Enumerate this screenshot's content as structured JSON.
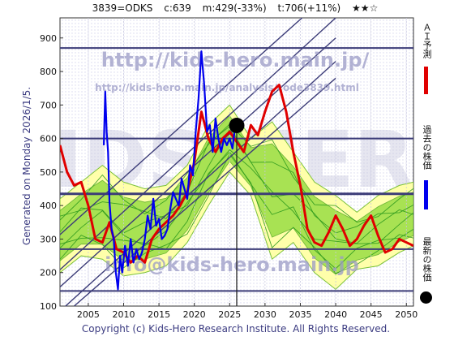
{
  "header": {
    "code_name": "3839=ODKS",
    "current": "c:639",
    "min": "m:429(-33%)",
    "target": "t:706(+11%)",
    "stars": "★★☆"
  },
  "generated": "Generated on Monday 2026/1/5.",
  "copyright": "Copyright (c) Kids-Hero Research Institute. All Rights Reserved.",
  "watermarks": {
    "url": "http://kids-hero.main.jp/",
    "url_sub": "http://kids-hero.main.jp/analysis/code3839.html",
    "email": "info@kids-hero.main.jp",
    "big": "KIDS-HERO"
  },
  "legend": {
    "ai_forecast": "ＡＩ予測",
    "past_price": "過去の株価",
    "latest_price": "最新の株価"
  },
  "colors": {
    "ai_forecast": "#e00000",
    "past_price": "#0000ee",
    "latest_price": "#000000",
    "band_green": "#99dd44",
    "band_yellow": "#ffffaa",
    "grid": "#3c3c78"
  },
  "chart_data": {
    "type": "line",
    "xlim": [
      2001,
      2051
    ],
    "ylim": [
      100,
      960
    ],
    "x_ticks": [
      2005,
      2010,
      2015,
      2020,
      2025,
      2030,
      2035,
      2040,
      2045,
      2050
    ],
    "y_ticks": [
      100,
      200,
      300,
      400,
      500,
      600,
      700,
      800,
      900
    ],
    "h_lines": [
      145,
      270,
      435,
      600,
      870
    ],
    "latest_point": {
      "x": 2026.0,
      "y": 639
    },
    "series": [
      {
        "role": "past_price",
        "x": [
          2007.2,
          2007.4,
          2007.6,
          2007.8,
          2008.0,
          2008.3,
          2008.6,
          2008.9,
          2009.2,
          2009.5,
          2009.8,
          2010.2,
          2010.6,
          2011.0,
          2011.4,
          2011.8,
          2012.2,
          2012.6,
          2013.0,
          2013.4,
          2013.8,
          2014.2,
          2014.6,
          2015.0,
          2015.4,
          2015.8,
          2016.2,
          2016.6,
          2017.0,
          2017.4,
          2017.8,
          2018.2,
          2018.6,
          2019.0,
          2019.4,
          2019.8,
          2020.2,
          2020.6,
          2021.0,
          2021.4,
          2021.8,
          2022.2,
          2022.6,
          2023.0,
          2023.4,
          2023.8,
          2024.2,
          2024.6,
          2025.0,
          2025.4,
          2025.8
        ],
        "y": [
          580,
          740,
          620,
          560,
          410,
          330,
          300,
          200,
          150,
          250,
          200,
          280,
          220,
          300,
          230,
          270,
          240,
          260,
          300,
          370,
          330,
          420,
          340,
          360,
          300,
          310,
          330,
          390,
          440,
          420,
          400,
          480,
          450,
          420,
          520,
          490,
          620,
          720,
          860,
          760,
          620,
          640,
          560,
          660,
          600,
          560,
          600,
          580,
          600,
          570,
          640
        ]
      },
      {
        "role": "ai_forecast",
        "x": [
          2001,
          2002,
          2003,
          2004,
          2005,
          2006,
          2007,
          2008,
          2009,
          2010,
          2011,
          2012,
          2013,
          2014,
          2015,
          2016,
          2017,
          2018,
          2019,
          2020,
          2021,
          2022,
          2023,
          2024,
          2025,
          2026,
          2027,
          2028,
          2029,
          2030,
          2031,
          2032,
          2033,
          2034,
          2035,
          2036,
          2037,
          2038,
          2039,
          2040,
          2041,
          2042,
          2043,
          2044,
          2045,
          2046,
          2047,
          2048,
          2049,
          2050,
          2051
        ],
        "y": [
          580,
          500,
          460,
          470,
          400,
          300,
          290,
          350,
          270,
          260,
          230,
          250,
          230,
          300,
          330,
          350,
          370,
          400,
          440,
          530,
          680,
          600,
          560,
          600,
          620,
          590,
          560,
          640,
          610,
          680,
          740,
          760,
          680,
          560,
          460,
          330,
          290,
          280,
          320,
          370,
          330,
          280,
          300,
          340,
          370,
          310,
          260,
          270,
          300,
          290,
          280
        ]
      },
      {
        "role": "band_upper",
        "x": [
          2001,
          2004,
          2007,
          2010,
          2013,
          2016,
          2019,
          2022,
          2025,
          2028,
          2031,
          2034,
          2037,
          2040,
          2043,
          2046,
          2049,
          2051
        ],
        "y": [
          420,
          470,
          520,
          470,
          450,
          460,
          520,
          640,
          700,
          600,
          650,
          560,
          470,
          430,
          380,
          430,
          460,
          470
        ]
      },
      {
        "role": "band_lower",
        "x": [
          2001,
          2004,
          2007,
          2010,
          2013,
          2016,
          2019,
          2022,
          2025,
          2028,
          2031,
          2034,
          2037,
          2040,
          2043,
          2046,
          2049,
          2051
        ],
        "y": [
          200,
          250,
          240,
          190,
          200,
          220,
          290,
          400,
          500,
          430,
          240,
          290,
          200,
          150,
          210,
          220,
          260,
          280
        ]
      }
    ]
  }
}
